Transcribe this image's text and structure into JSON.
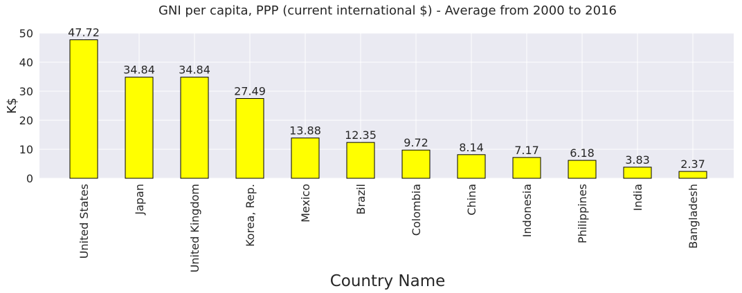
{
  "chart_data": {
    "type": "bar",
    "title": "GNI per capita, PPP (current international $) - Average from 2000 to 2016",
    "xlabel": "Country Name",
    "ylabel": "K$",
    "ylim": [
      0,
      50
    ],
    "yticks": [
      0,
      10,
      20,
      30,
      40,
      50
    ],
    "grid": true,
    "categories": [
      "United States",
      "Japan",
      "United Kingdom",
      "Korea, Rep.",
      "Mexico",
      "Brazil",
      "Colombia",
      "China",
      "Indonesia",
      "Philippines",
      "India",
      "Bangladesh"
    ],
    "values": [
      47.72,
      34.84,
      34.84,
      27.49,
      13.88,
      12.35,
      9.72,
      8.14,
      7.17,
      6.18,
      3.83,
      2.37
    ],
    "data_labels": [
      "47.72",
      "34.84",
      "34.84",
      "27.49",
      "13.88",
      "12.35",
      "9.72",
      "8.14",
      "7.17",
      "6.18",
      "3.83",
      "2.37"
    ],
    "colors": {
      "bar": "#ffff00",
      "edge": "#000000",
      "plot_background": "#eaeaf2",
      "grid": "#ffffff"
    }
  }
}
